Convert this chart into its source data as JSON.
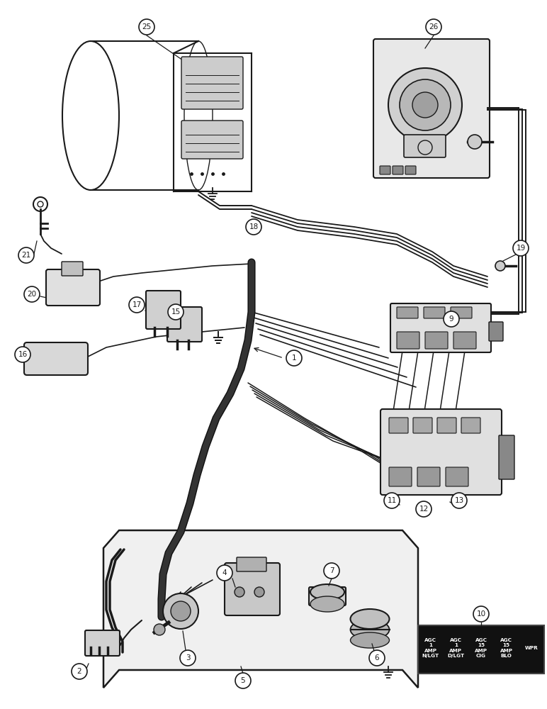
{
  "bg_color": "#ffffff",
  "line_color": "#1a1a1a",
  "fig_width": 7.72,
  "fig_height": 10.0,
  "dpi": 100,
  "table10": {
    "bg": "#111111",
    "fg": "#ffffff",
    "cols": [
      "AGC\n1\nAMP\nN/LGT",
      "AGC\n1\nAMP\nD/LGT",
      "AGC\n15\nAMP\nCIG",
      "AGC\n15\nAMP\nBLO",
      "WPR"
    ]
  }
}
